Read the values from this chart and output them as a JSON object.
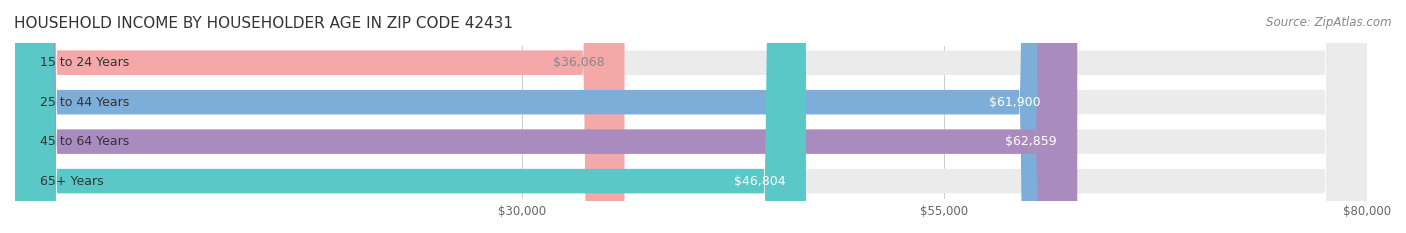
{
  "title": "HOUSEHOLD INCOME BY HOUSEHOLDER AGE IN ZIP CODE 42431",
  "source": "Source: ZipAtlas.com",
  "categories": [
    "15 to 24 Years",
    "25 to 44 Years",
    "45 to 64 Years",
    "65+ Years"
  ],
  "values": [
    36068,
    61900,
    62859,
    46804
  ],
  "bar_colors": [
    "#f4a9a8",
    "#7dadd9",
    "#a98bbf",
    "#5bc8c8"
  ],
  "label_colors": [
    "#888888",
    "#ffffff",
    "#ffffff",
    "#ffffff"
  ],
  "bg_bar_color": "#f0f0f0",
  "xlim": [
    0,
    80000
  ],
  "xticks": [
    30000,
    55000,
    80000
  ],
  "xtick_labels": [
    "$30,000",
    "$55,000",
    "$80,000"
  ],
  "value_labels": [
    "$36,068",
    "$61,900",
    "$62,859",
    "$46,804"
  ],
  "title_fontsize": 11,
  "source_fontsize": 8.5,
  "label_fontsize": 9,
  "value_fontsize": 9,
  "bar_height": 0.62,
  "background_color": "#ffffff"
}
